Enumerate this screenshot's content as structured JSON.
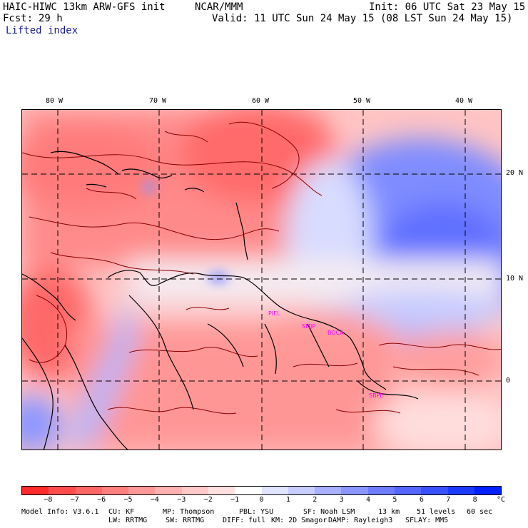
{
  "header": {
    "model": "HAIC-HIWC 13km ARW-GFS init",
    "org": "NCAR/MMM",
    "init": "Init: 06 UTC Sat 23 May 15",
    "fcst_label": "Fcst:",
    "fcst_value": "29 h",
    "valid": "Valid: 11 UTC Sun 24 May 15 (08 LST Sun 24 May 15)",
    "field": "Lifted index"
  },
  "map": {
    "lon_labels": [
      "80 W",
      "70 W",
      "60 W",
      "50 W",
      "40 W"
    ],
    "lat_labels": [
      "20 N",
      "10 N",
      "0"
    ],
    "stations": [
      "PIEL",
      "SMJP",
      "BOCA",
      "SBPE"
    ],
    "colors": {
      "coast": "#000000",
      "contour": "#8b0000",
      "grid": "#000000",
      "station": "#ff00ff"
    }
  },
  "colorbar": {
    "colors": [
      "#ff2a2a",
      "#ff4d4d",
      "#ff6666",
      "#ff7f7f",
      "#ff9999",
      "#ffb0b0",
      "#ffc8c8",
      "#ffe0e0",
      "#ffffff",
      "#e0e4ff",
      "#c8ccff",
      "#a8b0ff",
      "#8c96ff",
      "#707cff",
      "#5466ff",
      "#3850ff",
      "#1c3aff",
      "#0020ff"
    ],
    "labels": [
      "−8",
      "−7",
      "−6",
      "−5",
      "−4",
      "−3",
      "−2",
      "−1",
      "0",
      "1",
      "2",
      "3",
      "4",
      "5",
      "6",
      "7",
      "8"
    ],
    "unit": "°C"
  },
  "footer": {
    "line1": [
      "Model Info: V3.6.1",
      "CU: KF",
      "MP: Thompson",
      "PBL: YSU",
      "SF: Noah LSM",
      "13 km",
      "51 levels",
      "60 sec"
    ],
    "line2": [
      "LW: RRTMG",
      "SW: RRTMG",
      "DIFF: full",
      "KM: 2D Smagor",
      "DAMP: Rayleigh3",
      "SFLAY: MM5"
    ]
  }
}
